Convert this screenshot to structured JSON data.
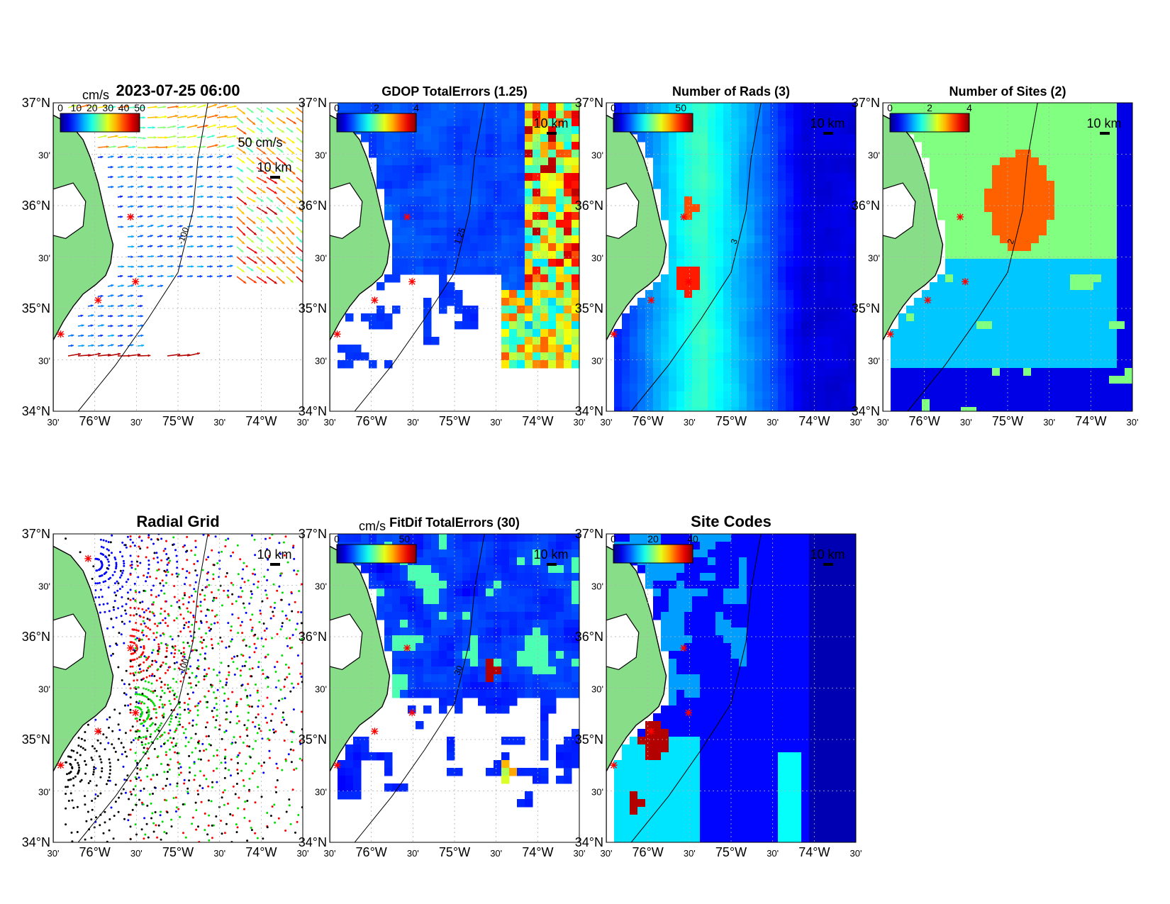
{
  "figure": {
    "colors": {
      "land": "#88dd88",
      "coast": "#000000",
      "site_marker": "#ff0000",
      "grid": "#b0b0b0"
    },
    "axes": {
      "lat_labels": [
        "37°N",
        "30'",
        "36°N",
        "30'",
        "35°N",
        "30'",
        "34°N"
      ],
      "lon_labels": [
        "30'",
        "76°W",
        "30'",
        "75°W",
        "30'",
        "74°W",
        "30'"
      ],
      "scale_bar": "10 km",
      "isobath": "-100"
    },
    "panels": [
      {
        "id": "velocity",
        "title": "2023-07-25 06:00",
        "colorbar_label": "cm/s",
        "colorbar_ticks": [
          "0",
          "10",
          "20",
          "30",
          "40",
          "50"
        ],
        "vector_scale": "50 cm/s",
        "contour_label": "-100",
        "fill": "arrows"
      },
      {
        "id": "gdop",
        "title": "GDOP TotalErrors (1.25)",
        "colorbar_label": "",
        "colorbar_ticks": [
          "0",
          "2",
          "4"
        ],
        "contour_label": "1.25",
        "fill": "gdop"
      },
      {
        "id": "rads",
        "title": "Number of Rads (3)",
        "colorbar_label": "",
        "colorbar_ticks": [
          "0",
          "50"
        ],
        "contour_label": "3",
        "fill": "rads"
      },
      {
        "id": "sites",
        "title": "Number of Sites (2)",
        "colorbar_label": "",
        "colorbar_ticks": [
          "0",
          "2",
          "4"
        ],
        "contour_label": "2",
        "fill": "sites"
      },
      {
        "id": "radial",
        "title": "Radial Grid",
        "colorbar_label": "",
        "colorbar_ticks": [],
        "contour_label": "-100",
        "fill": "radial"
      },
      {
        "id": "fitdif",
        "title": "FitDif TotalErrors (30)",
        "colorbar_label": "cm/s",
        "colorbar_ticks": [
          "0",
          "50"
        ],
        "contour_label": "30",
        "fill": "fitdif"
      },
      {
        "id": "codes",
        "title": "Site Codes",
        "colorbar_label": "",
        "colorbar_ticks": [
          "0",
          "20",
          "40"
        ],
        "contour_label": "",
        "fill": "codes"
      }
    ]
  }
}
